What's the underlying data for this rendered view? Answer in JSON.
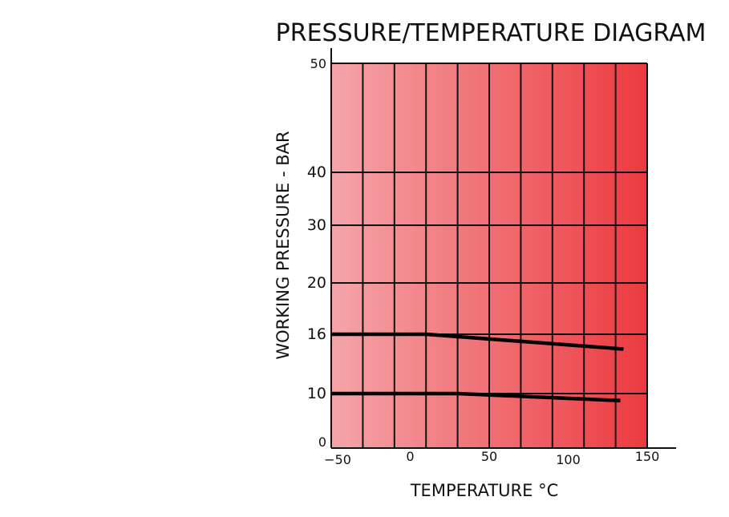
{
  "chart_data": {
    "type": "line",
    "title": "PRESSURE/TEMPERATURE DIAGRAM",
    "xlabel": "TEMPERATURE °C",
    "ylabel": "WORKING PRESSURE - BAR",
    "x_ticks": [
      "−50",
      "0",
      "50",
      "100",
      "150"
    ],
    "y_ticks": [
      "0",
      "10",
      "16",
      "20",
      "30",
      "40",
      "50"
    ],
    "xlim": [
      -50,
      150
    ],
    "x_gridlines": [
      -50,
      -30,
      -10,
      10,
      30,
      50,
      70,
      90,
      110,
      130,
      150
    ],
    "y_gridlines": [
      0,
      10,
      16,
      20,
      30,
      40,
      50
    ],
    "y_scale_note": "non-linear",
    "grid": true,
    "background_gradient": [
      "#f4a5a9",
      "#ec3a3f"
    ],
    "series": [
      {
        "points": [
          [
            -50,
            16
          ],
          [
            10,
            16
          ],
          [
            135,
            14.5
          ]
        ]
      },
      {
        "points": [
          [
            -50,
            10
          ],
          [
            30,
            10
          ],
          [
            133,
            8.7
          ]
        ]
      }
    ]
  }
}
